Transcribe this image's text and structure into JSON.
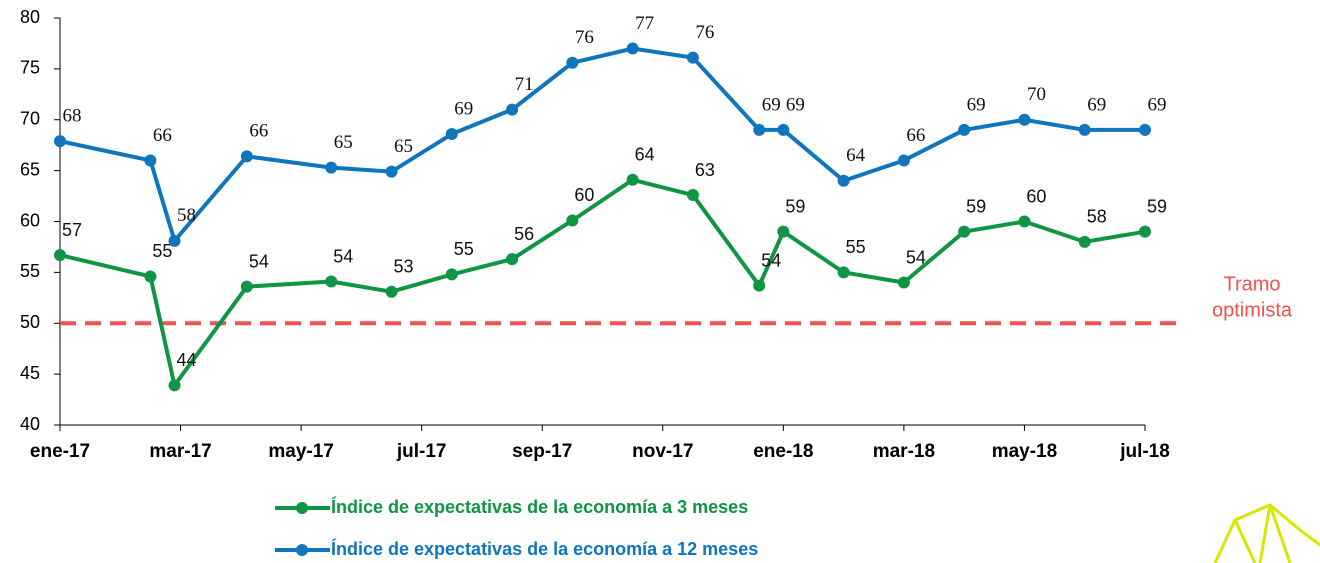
{
  "chart_data": {
    "type": "line",
    "x": [
      0,
      1.5,
      1.9,
      3.1,
      4.5,
      5.5,
      6.5,
      7.5,
      8.5,
      9.5,
      10.5,
      11.6,
      12,
      13,
      14,
      15,
      16,
      17,
      18
    ],
    "xlim": [
      0,
      18
    ],
    "xticks": [
      {
        "value": 0,
        "label": "ene-17"
      },
      {
        "value": 2,
        "label": "mar-17"
      },
      {
        "value": 4,
        "label": "may-17"
      },
      {
        "value": 6,
        "label": "jul-17"
      },
      {
        "value": 8,
        "label": "sep-17"
      },
      {
        "value": 10,
        "label": "nov-17"
      },
      {
        "value": 12,
        "label": "ene-18"
      },
      {
        "value": 14,
        "label": "mar-18"
      },
      {
        "value": 16,
        "label": "may-18"
      },
      {
        "value": 18,
        "label": "jul-18"
      }
    ],
    "ylim": [
      40,
      80
    ],
    "yticks": [
      40,
      45,
      50,
      55,
      60,
      65,
      70,
      75,
      80
    ],
    "grid": false,
    "series": [
      {
        "name": "Índice de expectativas de la economía a 3 meses",
        "color": "#0f9543",
        "values": [
          56.7,
          54.6,
          43.9,
          53.6,
          54.1,
          53.1,
          54.8,
          56.3,
          60.1,
          64.1,
          62.6,
          53.7,
          59,
          55,
          54,
          59,
          60,
          58,
          59
        ],
        "value_labels": [
          "57",
          "55",
          "44",
          "54",
          "54",
          "53",
          "55",
          "56",
          "60",
          "64",
          "63",
          "54",
          "59",
          "55",
          "54",
          "59",
          "60",
          "58",
          "59"
        ]
      },
      {
        "name": "Índice de expectativas de la economía a 12 meses",
        "color": "#0f75bd",
        "values": [
          67.9,
          66,
          58.1,
          66.4,
          65.3,
          64.9,
          68.6,
          71,
          75.6,
          77,
          76.1,
          69,
          69,
          64,
          66,
          69,
          70,
          69,
          69
        ],
        "value_labels": [
          "68",
          "66",
          "58",
          "66",
          "65",
          "65",
          "69",
          "71",
          "76",
          "77",
          "76",
          "69",
          "69",
          "64",
          "66",
          "69",
          "70",
          "69",
          "69"
        ]
      }
    ],
    "reference_line": {
      "value": 50,
      "color": "#f0524f",
      "label": [
        "Tramo",
        "optimista"
      ]
    }
  }
}
